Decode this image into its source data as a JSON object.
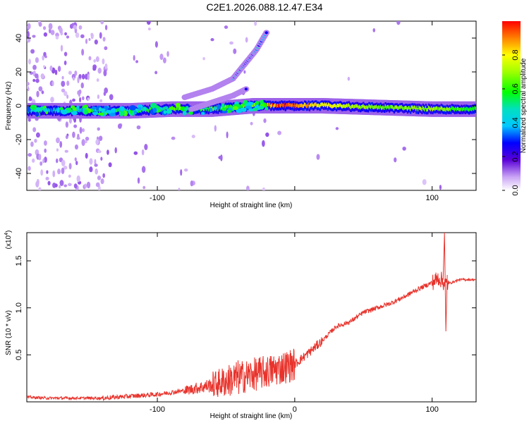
{
  "title": "C2E1.2026.088.12.47.E34",
  "chart_data": [
    {
      "type": "heatmap",
      "xlabel": "Height of straight line (km)",
      "ylabel": "Frequency (Hz)",
      "xlim": [
        -195,
        132
      ],
      "ylim": [
        -50,
        50
      ],
      "xticks": [
        -100,
        0,
        100
      ],
      "xtick_labels": [
        "-100",
        "",
        "100"
      ],
      "yticks": [
        -40,
        -20,
        0,
        20,
        40
      ],
      "ytick_labels": [
        "-40",
        "-20",
        "0",
        "20",
        "40"
      ],
      "colorbar": {
        "label": "Normalized spectral amplitude",
        "range": [
          0,
          1
        ],
        "ticks": [
          0.0,
          0.2,
          0.4,
          0.6,
          0.8
        ],
        "tick_labels": [
          "0.0",
          "0.2",
          "0.4",
          "0.6",
          "0.8"
        ]
      },
      "main_band": [
        {
          "x": -195,
          "f": -3,
          "amp": 0.35
        },
        {
          "x": -150,
          "f": -3,
          "amp": 0.4
        },
        {
          "x": -120,
          "f": -3,
          "amp": 0.45
        },
        {
          "x": -90,
          "f": -2,
          "amp": 0.5
        },
        {
          "x": -60,
          "f": -2,
          "amp": 0.55
        },
        {
          "x": -30,
          "f": 0,
          "amp": 0.6
        },
        {
          "x": -10,
          "f": 0,
          "amp": 0.95
        },
        {
          "x": 20,
          "f": 0,
          "amp": 0.8
        },
        {
          "x": 60,
          "f": -1,
          "amp": 0.65
        },
        {
          "x": 100,
          "f": -2,
          "amp": 0.7
        },
        {
          "x": 132,
          "f": -2,
          "amp": 0.55
        }
      ],
      "upper_branch": [
        {
          "x": -80,
          "f": 5
        },
        {
          "x": -60,
          "f": 10
        },
        {
          "x": -45,
          "f": 16
        },
        {
          "x": -35,
          "f": 26
        },
        {
          "x": -28,
          "f": 33
        },
        {
          "x": -20,
          "f": 44
        }
      ],
      "lower_branch": [
        {
          "x": -75,
          "f": -2
        },
        {
          "x": -60,
          "f": 2
        },
        {
          "x": -45,
          "f": 6
        },
        {
          "x": -35,
          "f": 10
        }
      ]
    },
    {
      "type": "line",
      "xlabel": "Height of straight line (km)",
      "ylabel": "SNR (10 * v/v)",
      "y_multiplier": "(x10",
      "y_multiplier_exp": "4",
      "y_multiplier_close": ")",
      "xlim": [
        -195,
        132
      ],
      "ylim": [
        0,
        1.8
      ],
      "xticks": [
        -100,
        0,
        100
      ],
      "xtick_labels": [
        "-100",
        "0",
        "100"
      ],
      "yticks": [
        0.5,
        1.0,
        1.5
      ],
      "ytick_labels": [
        "0.5",
        "1.0",
        "1.5"
      ],
      "color": "#e8332c",
      "series": [
        {
          "name": "SNR",
          "x": [
            -195,
            -180,
            -160,
            -140,
            -120,
            -100,
            -80,
            -60,
            -40,
            -20,
            0,
            10,
            20,
            30,
            40,
            50,
            60,
            70,
            80,
            90,
            100,
            105,
            110,
            120,
            132
          ],
          "values": [
            0.05,
            0.04,
            0.04,
            0.04,
            0.06,
            0.08,
            0.12,
            0.18,
            0.26,
            0.32,
            0.4,
            0.52,
            0.65,
            0.8,
            0.85,
            0.95,
            1.0,
            1.05,
            1.12,
            1.2,
            1.27,
            1.32,
            1.25,
            1.3,
            1.3
          ]
        }
      ]
    }
  ]
}
